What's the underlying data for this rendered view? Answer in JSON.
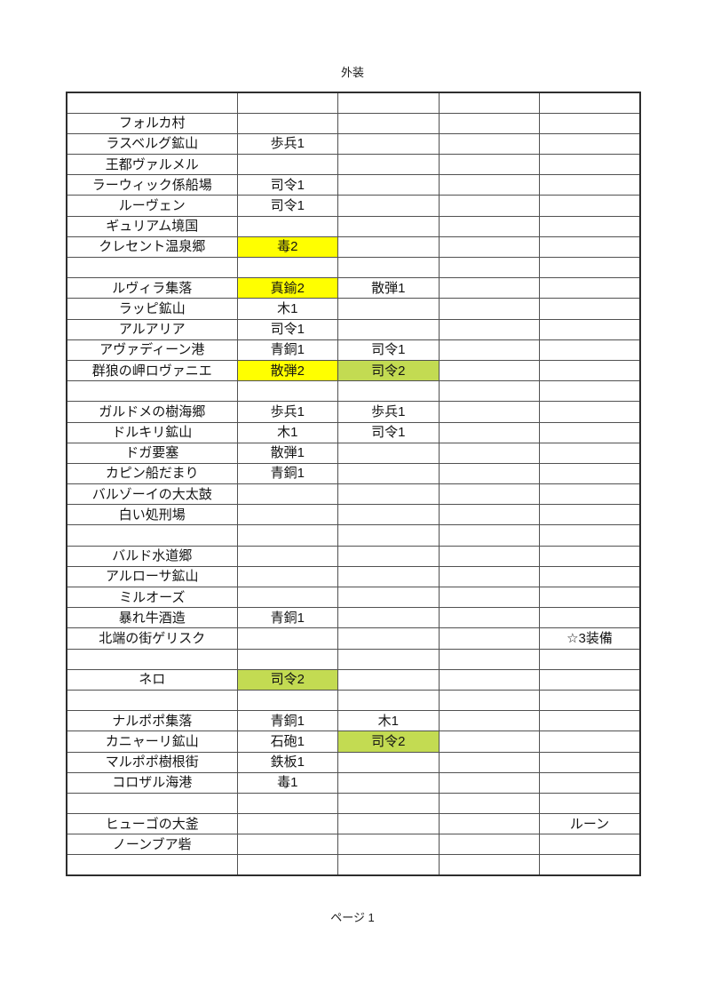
{
  "page": {
    "title": "外装",
    "footer": "ページ 1"
  },
  "colors": {
    "highlight_yellow": "#ffff00",
    "highlight_green": "#c3db52",
    "border": "#515151",
    "text": "#141414"
  },
  "table": {
    "column_count": 5,
    "rows": [
      {
        "cells": [
          "",
          "",
          "",
          "",
          ""
        ]
      },
      {
        "cells": [
          "フォルカ村",
          "",
          "",
          "",
          ""
        ]
      },
      {
        "cells": [
          "ラスベルグ鉱山",
          "歩兵1",
          "",
          "",
          ""
        ]
      },
      {
        "cells": [
          "王都ヴァルメル",
          "",
          "",
          "",
          ""
        ]
      },
      {
        "cells": [
          "ラーウィック係船場",
          "司令1",
          "",
          "",
          ""
        ]
      },
      {
        "cells": [
          "ルーヴェン",
          "司令1",
          "",
          "",
          ""
        ]
      },
      {
        "cells": [
          "ギュリアム境国",
          "",
          "",
          "",
          ""
        ]
      },
      {
        "cells": [
          "クレセント温泉郷",
          "毒2",
          "",
          "",
          ""
        ],
        "hl": [
          "",
          "yellow",
          "",
          "",
          ""
        ]
      },
      {
        "cells": [
          "",
          "",
          "",
          "",
          ""
        ]
      },
      {
        "cells": [
          "ルヴィラ集落",
          "真鍮2",
          "散弾1",
          "",
          ""
        ],
        "hl": [
          "",
          "yellow",
          "",
          "",
          ""
        ]
      },
      {
        "cells": [
          "ラッピ鉱山",
          "木1",
          "",
          "",
          ""
        ]
      },
      {
        "cells": [
          "アルアリア",
          "司令1",
          "",
          "",
          ""
        ]
      },
      {
        "cells": [
          "アヴァディーン港",
          "青銅1",
          "司令1",
          "",
          ""
        ]
      },
      {
        "cells": [
          "群狼の岬ロヴァニエ",
          "散弾2",
          "司令2",
          "",
          ""
        ],
        "hl": [
          "",
          "yellow",
          "green",
          "",
          ""
        ]
      },
      {
        "cells": [
          "",
          "",
          "",
          "",
          ""
        ]
      },
      {
        "cells": [
          "ガルドメの樹海郷",
          "歩兵1",
          "歩兵1",
          "",
          ""
        ]
      },
      {
        "cells": [
          "ドルキリ鉱山",
          "木1",
          "司令1",
          "",
          ""
        ]
      },
      {
        "cells": [
          "ドガ要塞",
          "散弾1",
          "",
          "",
          ""
        ]
      },
      {
        "cells": [
          "カピン船だまり",
          "青銅1",
          "",
          "",
          ""
        ]
      },
      {
        "cells": [
          "バルゾーイの大太鼓",
          "",
          "",
          "",
          ""
        ]
      },
      {
        "cells": [
          "白い処刑場",
          "",
          "",
          "",
          ""
        ]
      },
      {
        "cells": [
          "",
          "",
          "",
          "",
          ""
        ]
      },
      {
        "cells": [
          "バルド水道郷",
          "",
          "",
          "",
          ""
        ]
      },
      {
        "cells": [
          "アルローサ鉱山",
          "",
          "",
          "",
          ""
        ]
      },
      {
        "cells": [
          "ミルオーズ",
          "",
          "",
          "",
          ""
        ]
      },
      {
        "cells": [
          "暴れ牛酒造",
          "青銅1",
          "",
          "",
          ""
        ]
      },
      {
        "cells": [
          "北端の街ゲリスク",
          "",
          "",
          "",
          "☆3装備"
        ]
      },
      {
        "cells": [
          "",
          "",
          "",
          "",
          ""
        ]
      },
      {
        "cells": [
          "ネロ",
          "司令2",
          "",
          "",
          ""
        ],
        "hl": [
          "",
          "green",
          "",
          "",
          ""
        ]
      },
      {
        "cells": [
          "",
          "",
          "",
          "",
          ""
        ]
      },
      {
        "cells": [
          "ナルポポ集落",
          "青銅1",
          "木1",
          "",
          ""
        ]
      },
      {
        "cells": [
          "カニャーリ鉱山",
          "石砲1",
          "司令2",
          "",
          ""
        ],
        "hl": [
          "",
          "",
          "green",
          "",
          ""
        ]
      },
      {
        "cells": [
          "マルポポ樹根街",
          "鉄板1",
          "",
          "",
          ""
        ]
      },
      {
        "cells": [
          "コロザル海港",
          "毒1",
          "",
          "",
          ""
        ]
      },
      {
        "cells": [
          "",
          "",
          "",
          "",
          ""
        ]
      },
      {
        "cells": [
          "ヒューゴの大釜",
          "",
          "",
          "",
          "ルーン"
        ]
      },
      {
        "cells": [
          "ノーンブア砦",
          "",
          "",
          "",
          ""
        ]
      },
      {
        "cells": [
          "",
          "",
          "",
          "",
          ""
        ]
      }
    ]
  }
}
